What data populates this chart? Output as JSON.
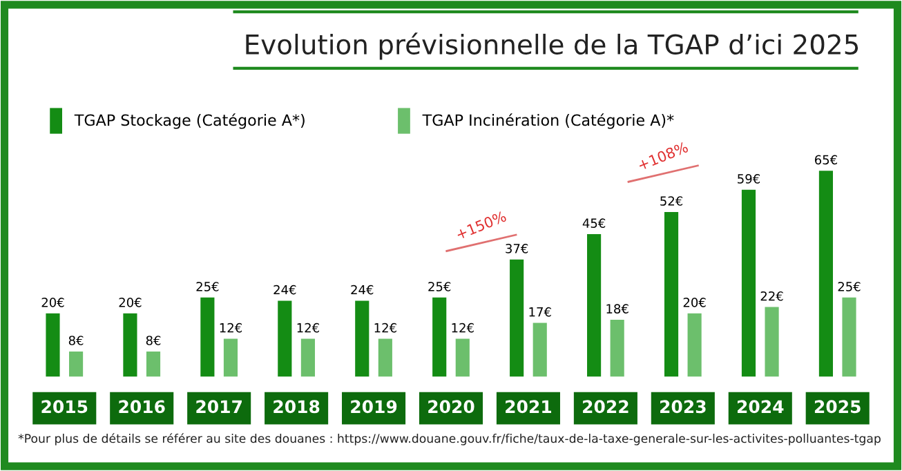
{
  "chart_data": {
    "type": "bar",
    "title": "Evolution prévisionnelle de la TGAP d’ici 2025",
    "categories": [
      "2015",
      "2016",
      "2017",
      "2018",
      "2019",
      "2020",
      "2021",
      "2022",
      "2023",
      "2024",
      "2025"
    ],
    "series": [
      {
        "name": "TGAP Stockage (Catégorie A*)",
        "color": "#148c14",
        "values": [
          20,
          20,
          25,
          24,
          24,
          25,
          37,
          45,
          52,
          59,
          65
        ],
        "value_labels": [
          "20€",
          "20€",
          "25€",
          "24€",
          "24€",
          "25€",
          "37€",
          "45€",
          "52€",
          "59€",
          "65€"
        ]
      },
      {
        "name": "TGAP Incinération (Catégorie A)*",
        "color": "#6cbf6c",
        "values": [
          8,
          8,
          12,
          12,
          12,
          12,
          17,
          18,
          20,
          22,
          25
        ],
        "value_labels": [
          "8€",
          "8€",
          "12€",
          "12€",
          "12€",
          "12€",
          "17€",
          "18€",
          "20€",
          "22€",
          "25€"
        ]
      }
    ],
    "legend": "top left",
    "annotations": [
      "+150%",
      "+108%",
      "*Pour plus de détails se référer au site des douanes : https://www.douane.gouv.fr/fiche/taux-de-la-taxe-generale-sur-les-activites-polluantes-tgap"
    ]
  }
}
